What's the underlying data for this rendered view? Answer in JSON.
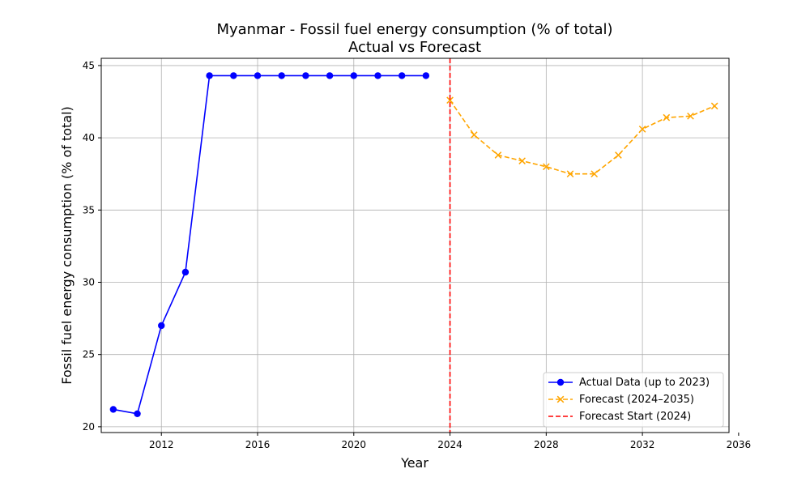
{
  "chart_data": {
    "type": "line",
    "title": "Myanmar - Fossil fuel energy consumption (% of total)",
    "subtitle": "Actual vs Forecast",
    "xlabel": "Year",
    "ylabel": "Fossil fuel energy consumption (% of total)",
    "xlim": [
      2009.5,
      2035.6
    ],
    "ylim": [
      19.6,
      45.5
    ],
    "xticks": [
      2012,
      2016,
      2020,
      2024,
      2028,
      2032,
      2036
    ],
    "yticks": [
      20,
      25,
      30,
      35,
      40,
      45
    ],
    "grid": true,
    "legend_position": "lower right",
    "series": [
      {
        "name": "Actual Data (up to 2023)",
        "color": "#0000ff",
        "line_style": "solid",
        "marker": "circle",
        "x": [
          2010,
          2011,
          2012,
          2013,
          2014,
          2015,
          2016,
          2017,
          2018,
          2019,
          2020,
          2021,
          2022,
          2023
        ],
        "y": [
          21.2,
          20.9,
          27.0,
          30.7,
          44.3,
          44.3,
          44.3,
          44.3,
          44.3,
          44.3,
          44.3,
          44.3,
          44.3,
          44.3
        ]
      },
      {
        "name": "Forecast (2024–2035)",
        "color": "#ffa500",
        "line_style": "dashed",
        "marker": "x",
        "x": [
          2024,
          2025,
          2026,
          2027,
          2028,
          2029,
          2030,
          2031,
          2032,
          2033,
          2034,
          2035
        ],
        "y": [
          42.6,
          40.2,
          38.8,
          38.4,
          38.0,
          37.5,
          37.5,
          38.8,
          40.6,
          41.4,
          41.5,
          42.2
        ]
      }
    ],
    "vline": {
      "name": "Forecast Start (2024)",
      "x": 2024,
      "color": "#ff0000",
      "line_style": "dashed"
    }
  }
}
